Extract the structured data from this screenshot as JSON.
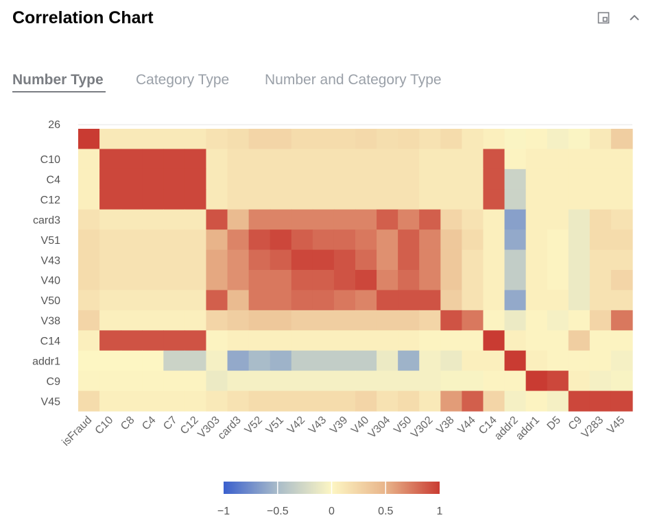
{
  "header": {
    "title": "Correlation Chart",
    "expand_icon": "window-restore-icon",
    "collapse_icon": "chevron-up-icon"
  },
  "tabs": [
    {
      "label": "Number Type",
      "active": true
    },
    {
      "label": "Category Type",
      "active": false
    },
    {
      "label": "Number and Category Type",
      "active": false
    }
  ],
  "chart_data": {
    "type": "heatmap",
    "x_labels": [
      "isFraud",
      "C10",
      "C8",
      "C4",
      "C7",
      "C12",
      "V303",
      "card3",
      "V52",
      "V51",
      "V42",
      "V43",
      "V39",
      "V40",
      "V304",
      "V50",
      "V302",
      "V38",
      "V44",
      "C14",
      "addr2",
      "addr1",
      "D5",
      "C9",
      "V283",
      "V45"
    ],
    "y_labels": [
      "26",
      "C10",
      "C4",
      "C12",
      "card3",
      "V51",
      "V43",
      "V40",
      "V50",
      "V38",
      "C14",
      "addr1",
      "C9",
      "V45"
    ],
    "values": [
      [
        1.0,
        0.1,
        0.1,
        0.1,
        0.1,
        0.1,
        0.15,
        0.18,
        0.25,
        0.25,
        0.2,
        0.2,
        0.2,
        0.22,
        0.18,
        0.2,
        0.15,
        0.2,
        0.1,
        0.05,
        -0.02,
        0.02,
        -0.05,
        -0.02,
        0.1,
        0.3
      ],
      [
        0.05,
        0.95,
        0.95,
        0.95,
        0.95,
        0.95,
        0.1,
        0.15,
        0.15,
        0.15,
        0.15,
        0.15,
        0.15,
        0.15,
        0.15,
        0.15,
        0.1,
        0.1,
        0.1,
        0.9,
        0.02,
        0.05,
        0.05,
        0.05,
        0.05,
        0.05
      ],
      [
        0.05,
        0.95,
        0.95,
        0.95,
        0.95,
        0.95,
        0.1,
        0.15,
        0.15,
        0.15,
        0.15,
        0.15,
        0.15,
        0.15,
        0.15,
        0.15,
        0.1,
        0.1,
        0.1,
        0.9,
        -0.3,
        0.05,
        0.05,
        0.05,
        0.05,
        0.05
      ],
      [
        0.05,
        0.95,
        0.95,
        0.95,
        0.95,
        0.95,
        0.1,
        0.15,
        0.15,
        0.15,
        0.15,
        0.15,
        0.15,
        0.15,
        0.15,
        0.15,
        0.1,
        0.1,
        0.1,
        0.9,
        -0.3,
        0.05,
        0.05,
        0.05,
        0.05,
        0.05
      ],
      [
        0.15,
        0.1,
        0.1,
        0.1,
        0.1,
        0.1,
        0.9,
        0.45,
        0.7,
        0.7,
        0.7,
        0.7,
        0.7,
        0.7,
        0.85,
        0.7,
        0.85,
        0.25,
        0.15,
        0.05,
        -0.65,
        0.05,
        0.05,
        -0.1,
        0.2,
        0.15
      ],
      [
        0.2,
        0.15,
        0.15,
        0.15,
        0.15,
        0.15,
        0.5,
        0.7,
        0.9,
        0.95,
        0.85,
        0.8,
        0.8,
        0.75,
        0.65,
        0.85,
        0.7,
        0.35,
        0.2,
        0.05,
        -0.6,
        0.05,
        0.02,
        -0.1,
        0.2,
        0.2
      ],
      [
        0.2,
        0.15,
        0.15,
        0.15,
        0.15,
        0.15,
        0.55,
        0.65,
        0.8,
        0.85,
        0.95,
        0.95,
        0.9,
        0.8,
        0.65,
        0.85,
        0.7,
        0.35,
        0.15,
        0.05,
        -0.35,
        0.05,
        0.02,
        -0.1,
        0.15,
        0.15
      ],
      [
        0.2,
        0.15,
        0.15,
        0.15,
        0.15,
        0.15,
        0.55,
        0.65,
        0.75,
        0.75,
        0.85,
        0.85,
        0.9,
        0.95,
        0.7,
        0.8,
        0.7,
        0.35,
        0.15,
        0.05,
        -0.35,
        0.05,
        0.02,
        -0.1,
        0.15,
        0.25
      ],
      [
        0.15,
        0.1,
        0.1,
        0.1,
        0.1,
        0.1,
        0.85,
        0.45,
        0.75,
        0.75,
        0.8,
        0.8,
        0.75,
        0.7,
        0.9,
        0.9,
        0.9,
        0.3,
        0.15,
        0.05,
        -0.6,
        0.05,
        0.05,
        -0.1,
        0.15,
        0.15
      ],
      [
        0.25,
        0.05,
        0.05,
        0.05,
        0.05,
        0.05,
        0.25,
        0.3,
        0.35,
        0.35,
        0.3,
        0.3,
        0.3,
        0.3,
        0.3,
        0.3,
        0.25,
        0.9,
        0.75,
        0.02,
        -0.1,
        0.02,
        -0.05,
        0.02,
        0.25,
        0.75
      ],
      [
        0.05,
        0.9,
        0.9,
        0.9,
        0.9,
        0.9,
        0.02,
        0.05,
        0.05,
        0.05,
        0.05,
        0.05,
        0.05,
        0.05,
        0.05,
        0.05,
        0.02,
        0.02,
        0.02,
        1.0,
        0.05,
        0.02,
        0.02,
        0.3,
        0.02,
        0.02
      ],
      [
        0.0,
        0.0,
        0.0,
        0.0,
        -0.3,
        -0.3,
        -0.05,
        -0.6,
        -0.5,
        -0.55,
        -0.35,
        -0.35,
        -0.35,
        -0.35,
        -0.1,
        -0.55,
        -0.05,
        -0.1,
        0.05,
        0.05,
        1.0,
        0.05,
        0.02,
        0.02,
        0.02,
        -0.05
      ],
      [
        0.02,
        0.02,
        0.02,
        0.02,
        0.02,
        0.02,
        -0.1,
        -0.05,
        -0.05,
        -0.05,
        -0.05,
        -0.05,
        -0.05,
        -0.05,
        -0.05,
        -0.05,
        -0.05,
        -0.03,
        -0.03,
        0.02,
        0.02,
        1.0,
        0.95,
        0.05,
        -0.05,
        -0.03
      ],
      [
        0.2,
        0.05,
        0.05,
        0.05,
        0.05,
        0.05,
        0.1,
        0.15,
        0.2,
        0.2,
        0.2,
        0.2,
        0.2,
        0.25,
        0.15,
        0.2,
        0.1,
        0.6,
        0.85,
        0.25,
        -0.05,
        0.02,
        -0.05,
        0.95,
        0.95,
        0.95
      ]
    ],
    "colorscale": {
      "min": -1,
      "max": 1,
      "colors": [
        "#3a5fcd",
        "#a9bcc9",
        "#fdf6c3",
        "#e8b48a",
        "#c93b32"
      ]
    },
    "colorbar_ticks": [
      "−1",
      "−0.5",
      "0",
      "0.5",
      "1"
    ],
    "grid": false,
    "legend": "bottom"
  }
}
